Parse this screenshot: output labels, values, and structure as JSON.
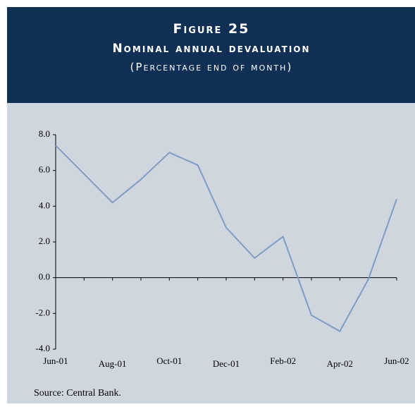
{
  "chart_data": {
    "type": "line",
    "title": "Figure 25",
    "subtitle": "Nominal annual devaluation",
    "y_label": "(Percentage end of month)",
    "source": "Source: Central Bank.",
    "categories": [
      "Jun-01",
      null,
      "Aug-01",
      null,
      "Oct-01",
      null,
      "Dec-01",
      null,
      "Feb-02",
      null,
      "Apr-02",
      null,
      "Jun-02"
    ],
    "values": [
      7.4,
      5.8,
      4.2,
      5.5,
      7.0,
      6.3,
      2.8,
      1.1,
      2.3,
      -2.1,
      -3.0,
      -0.1,
      4.4
    ],
    "color": "#7f9cc4",
    "ylim": [
      -4.0,
      8.0
    ],
    "yticks": [
      {
        "value": -4,
        "label": "-4.0"
      },
      {
        "value": -2,
        "label": "-2.0"
      },
      {
        "value": 0,
        "label": "0.0"
      },
      {
        "value": 2,
        "label": "2.0"
      },
      {
        "value": 4,
        "label": "4.0"
      },
      {
        "value": 6,
        "label": "6.0"
      },
      {
        "value": 8,
        "label": "8.0"
      }
    ]
  }
}
